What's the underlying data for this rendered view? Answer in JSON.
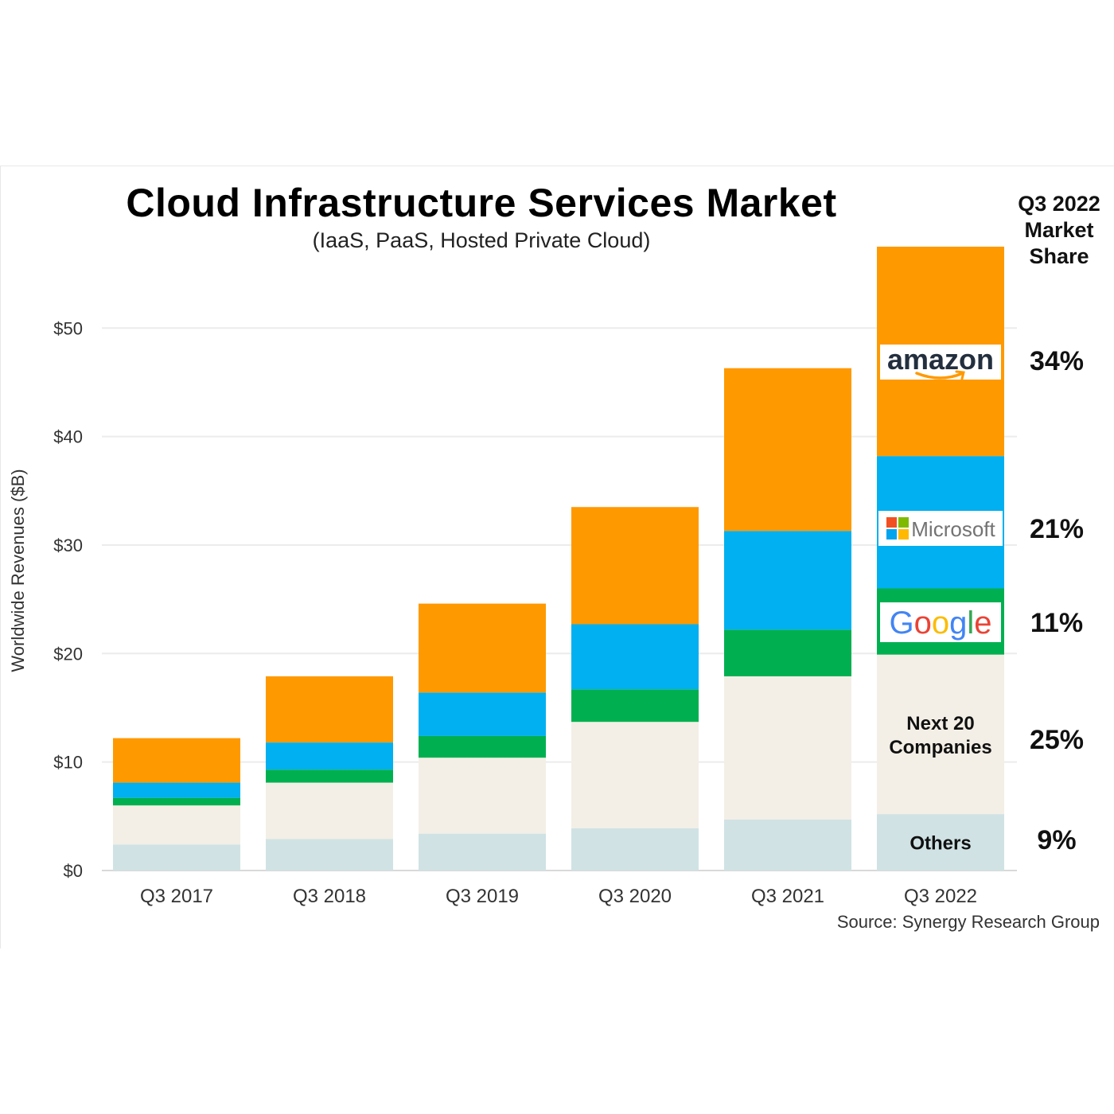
{
  "chart_data": {
    "type": "bar",
    "stacked": true,
    "title": "Cloud Infrastructure Services Market",
    "subtitle": "(IaaS, PaaS, Hosted Private Cloud)",
    "ylabel": "Worldwide Revenues ($B)",
    "xlabel": "",
    "ylim": [
      0,
      57.5
    ],
    "yticks": [
      0,
      10,
      20,
      30,
      40,
      50
    ],
    "ytick_labels": [
      "$0",
      "$10",
      "$20",
      "$30",
      "$40",
      "$50"
    ],
    "grid": true,
    "categories": [
      "Q3 2017",
      "Q3 2018",
      "Q3 2019",
      "Q3 2020",
      "Q3 2021",
      "Q3 2022"
    ],
    "series": [
      {
        "key": "others",
        "color": "#d0e2e4",
        "values": [
          2.4,
          2.9,
          3.4,
          3.9,
          4.7,
          5.2
        ]
      },
      {
        "key": "next20",
        "color": "#f3efe6",
        "values": [
          3.6,
          5.2,
          7.0,
          9.8,
          13.2,
          14.7
        ]
      },
      {
        "key": "google",
        "color": "#00b050",
        "values": [
          0.7,
          1.2,
          2.0,
          3.0,
          4.3,
          6.1
        ]
      },
      {
        "key": "microsoft",
        "color": "#00b0f0",
        "values": [
          1.4,
          2.5,
          4.0,
          6.0,
          9.1,
          12.2
        ]
      },
      {
        "key": "amazon",
        "color": "#ff9900",
        "values": [
          4.1,
          6.1,
          8.2,
          10.8,
          15.0,
          19.3
        ]
      }
    ],
    "segment_labels": [
      {
        "series": "next20",
        "lines": [
          "Next 20",
          "Companies"
        ]
      },
      {
        "series": "others",
        "lines": [
          "Others"
        ]
      }
    ],
    "logos": [
      {
        "series": "amazon",
        "name": "amazon-logo",
        "text": "amazon"
      },
      {
        "series": "microsoft",
        "name": "microsoft-logo",
        "text": "Microsoft"
      },
      {
        "series": "google",
        "name": "google-logo",
        "text": "Google"
      }
    ],
    "market_share_header": "Q3 2022 Market Share",
    "market_share_header_lines": [
      "Q3 2022",
      "Market",
      "Share"
    ],
    "market_share": [
      {
        "series": "amazon",
        "label": "34%"
      },
      {
        "series": "microsoft",
        "label": "21%"
      },
      {
        "series": "google",
        "label": "11%"
      },
      {
        "series": "next20",
        "label": "25%"
      },
      {
        "series": "others",
        "label": "9%"
      }
    ],
    "source": "Source: Synergy Research Group"
  }
}
